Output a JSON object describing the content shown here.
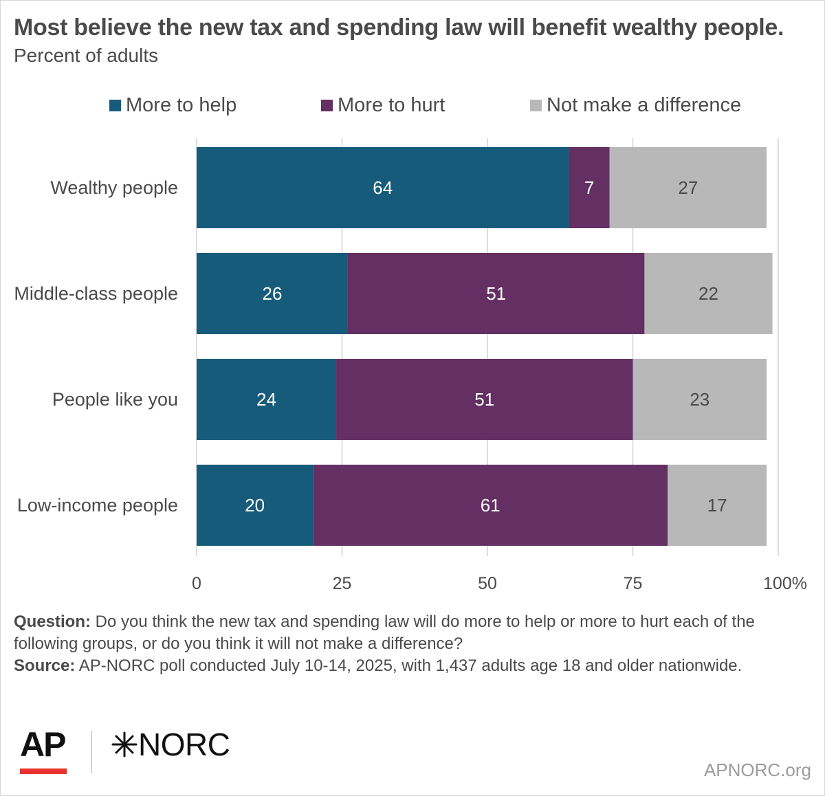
{
  "colors": {
    "help": "#175b7b",
    "hurt": "#642f63",
    "neutral": "#b8b8b8",
    "gridline": "#d4d4d4",
    "label_light": "#ffffff",
    "label_dark": "#4a4a4a",
    "text": "#4a4a4a",
    "ap_red": "#e8332e"
  },
  "chart_data": {
    "type": "bar",
    "orientation": "horizontal",
    "stacked": true,
    "title": "Most believe the new tax and spending law will benefit wealthy people.",
    "subtitle": "Percent of adults",
    "categories": [
      "Wealthy people",
      "Middle-class people",
      "People like you",
      "Low-income people"
    ],
    "series": [
      {
        "name": "More to help",
        "values": [
          64,
          26,
          24,
          20
        ]
      },
      {
        "name": "More to hurt",
        "values": [
          7,
          51,
          51,
          61
        ]
      },
      {
        "name": "Not make a difference",
        "values": [
          27,
          22,
          23,
          17
        ]
      }
    ],
    "xlim": [
      0,
      100
    ],
    "xticks": [
      0,
      25,
      50,
      75,
      100
    ],
    "xtick_labels": [
      "0",
      "25",
      "50",
      "75",
      "100%"
    ],
    "grid": true,
    "legend_position": "top"
  },
  "notes": {
    "question_label": "Question:",
    "question_text": " Do you think the new tax and spending law will do more to help or more to hurt each of the following groups, or do you think it will not make a difference?",
    "source_label": "Source:",
    "source_text": " AP-NORC poll conducted July 10-14, 2025, with 1,437 adults age 18 and older nationwide."
  },
  "branding": {
    "ap_logo": "AP",
    "norc_logo": "NORC",
    "site": "APNORC.org"
  },
  "icons": {
    "norc_mark": "asterisk-star-icon"
  }
}
